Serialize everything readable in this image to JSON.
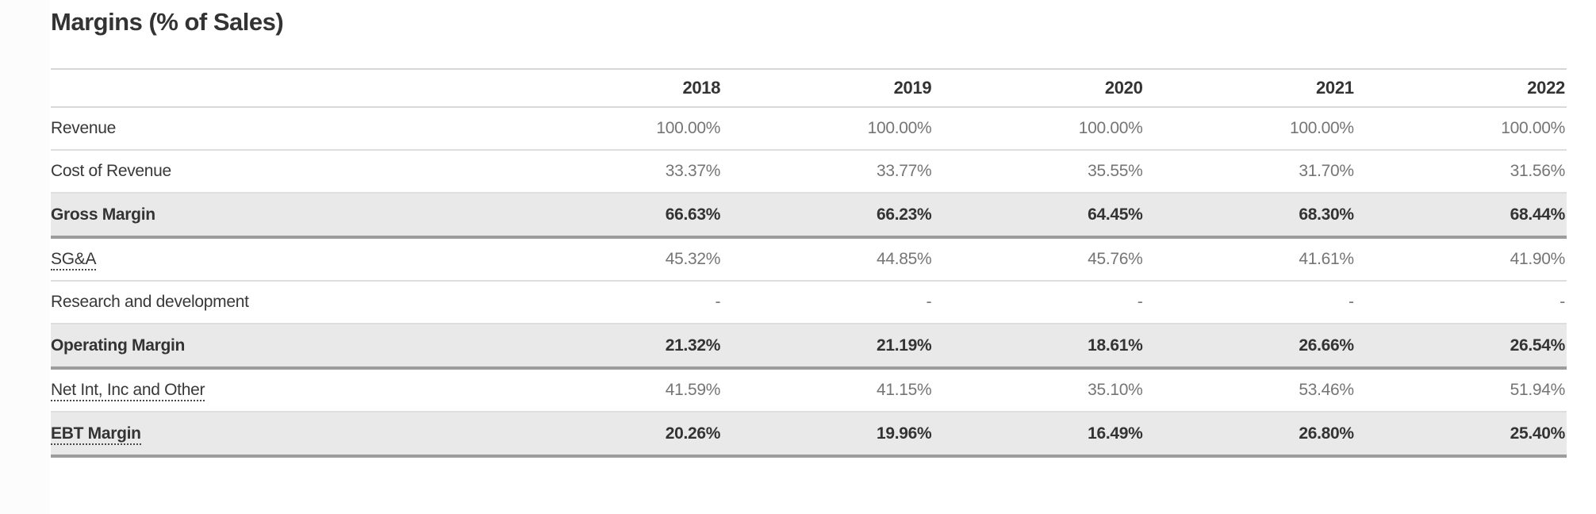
{
  "title": "Margins (% of Sales)",
  "colors": {
    "title_text": "#333333",
    "label_text": "#383838",
    "value_text": "#757575",
    "subtotal_text": "#333333",
    "subtotal_row_background": "#e9e9e9",
    "subtotal_bottom_border": "#9c9c9c",
    "row_divider": "#dedede",
    "table_top_border": "#d6d6d6"
  },
  "chart_data": {
    "type": "table",
    "title": "Margins (% of Sales)",
    "columns": [
      "2018",
      "2019",
      "2020",
      "2021",
      "2022"
    ],
    "rows": [
      {
        "label": "Revenue",
        "style": "normal",
        "underline": false,
        "values": [
          "100.00%",
          "100.00%",
          "100.00%",
          "100.00%",
          "100.00%"
        ]
      },
      {
        "label": "Cost of Revenue",
        "style": "normal",
        "underline": false,
        "values": [
          "33.37%",
          "33.77%",
          "35.55%",
          "31.70%",
          "31.56%"
        ]
      },
      {
        "label": "Gross Margin",
        "style": "subtotal",
        "underline": false,
        "values": [
          "66.63%",
          "66.23%",
          "64.45%",
          "68.30%",
          "68.44%"
        ]
      },
      {
        "label": "SG&A",
        "style": "normal",
        "underline": true,
        "values": [
          "45.32%",
          "44.85%",
          "45.76%",
          "41.61%",
          "41.90%"
        ]
      },
      {
        "label": "Research and development",
        "style": "normal",
        "underline": false,
        "values": [
          "-",
          "-",
          "-",
          "-",
          "-"
        ]
      },
      {
        "label": "Operating Margin",
        "style": "subtotal",
        "underline": false,
        "values": [
          "21.32%",
          "21.19%",
          "18.61%",
          "26.66%",
          "26.54%"
        ]
      },
      {
        "label": "Net Int, Inc and Other",
        "style": "normal",
        "underline": true,
        "values": [
          "41.59%",
          "41.15%",
          "35.10%",
          "53.46%",
          "51.94%"
        ]
      },
      {
        "label": "EBT Margin",
        "style": "subtotal",
        "underline": true,
        "values": [
          "20.26%",
          "19.96%",
          "16.49%",
          "26.80%",
          "25.40%"
        ]
      }
    ]
  }
}
